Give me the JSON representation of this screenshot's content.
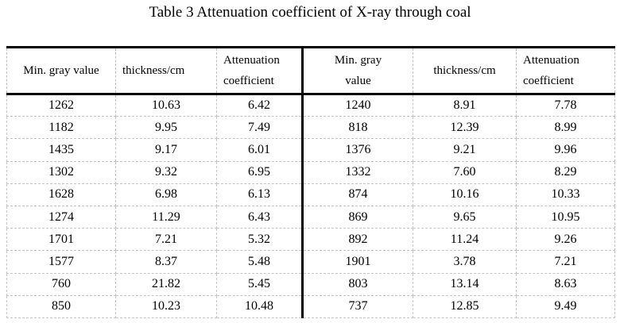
{
  "title": "Table 3 Attenuation coefficient of X-ray through coal",
  "headers": {
    "left": {
      "gray": "Min. gray value",
      "thickness": "thickness/cm",
      "atten_l1": "Attenuation",
      "atten_l2": "coefficient"
    },
    "right": {
      "gray_l1": "Min. gray",
      "gray_l2": "value",
      "thickness": "thickness/cm",
      "atten_l1": "Attenuation",
      "atten_l2": "coefficient"
    }
  },
  "rows": [
    [
      "1262",
      "10.63",
      "6.42",
      "1240",
      "8.91",
      "7.78"
    ],
    [
      "1182",
      "9.95",
      "7.49",
      "818",
      "12.39",
      "8.99"
    ],
    [
      "1435",
      "9.17",
      "6.01",
      "1376",
      "9.21",
      "9.96"
    ],
    [
      "1302",
      "9.32",
      "6.95",
      "1332",
      "7.60",
      "8.29"
    ],
    [
      "1628",
      "6.98",
      "6.13",
      "874",
      "10.16",
      "10.33"
    ],
    [
      "1274",
      "11.29",
      "6.43",
      "869",
      "9.65",
      "10.95"
    ],
    [
      "1701",
      "7.21",
      "5.32",
      "892",
      "11.24",
      "9.26"
    ],
    [
      "1577",
      "8.37",
      "5.48",
      "1901",
      "3.78",
      "7.21"
    ],
    [
      "760",
      "21.82",
      "5.45",
      "803",
      "13.14",
      "8.63"
    ],
    [
      "850",
      "10.23",
      "10.48",
      "737",
      "12.85",
      "9.49"
    ]
  ]
}
